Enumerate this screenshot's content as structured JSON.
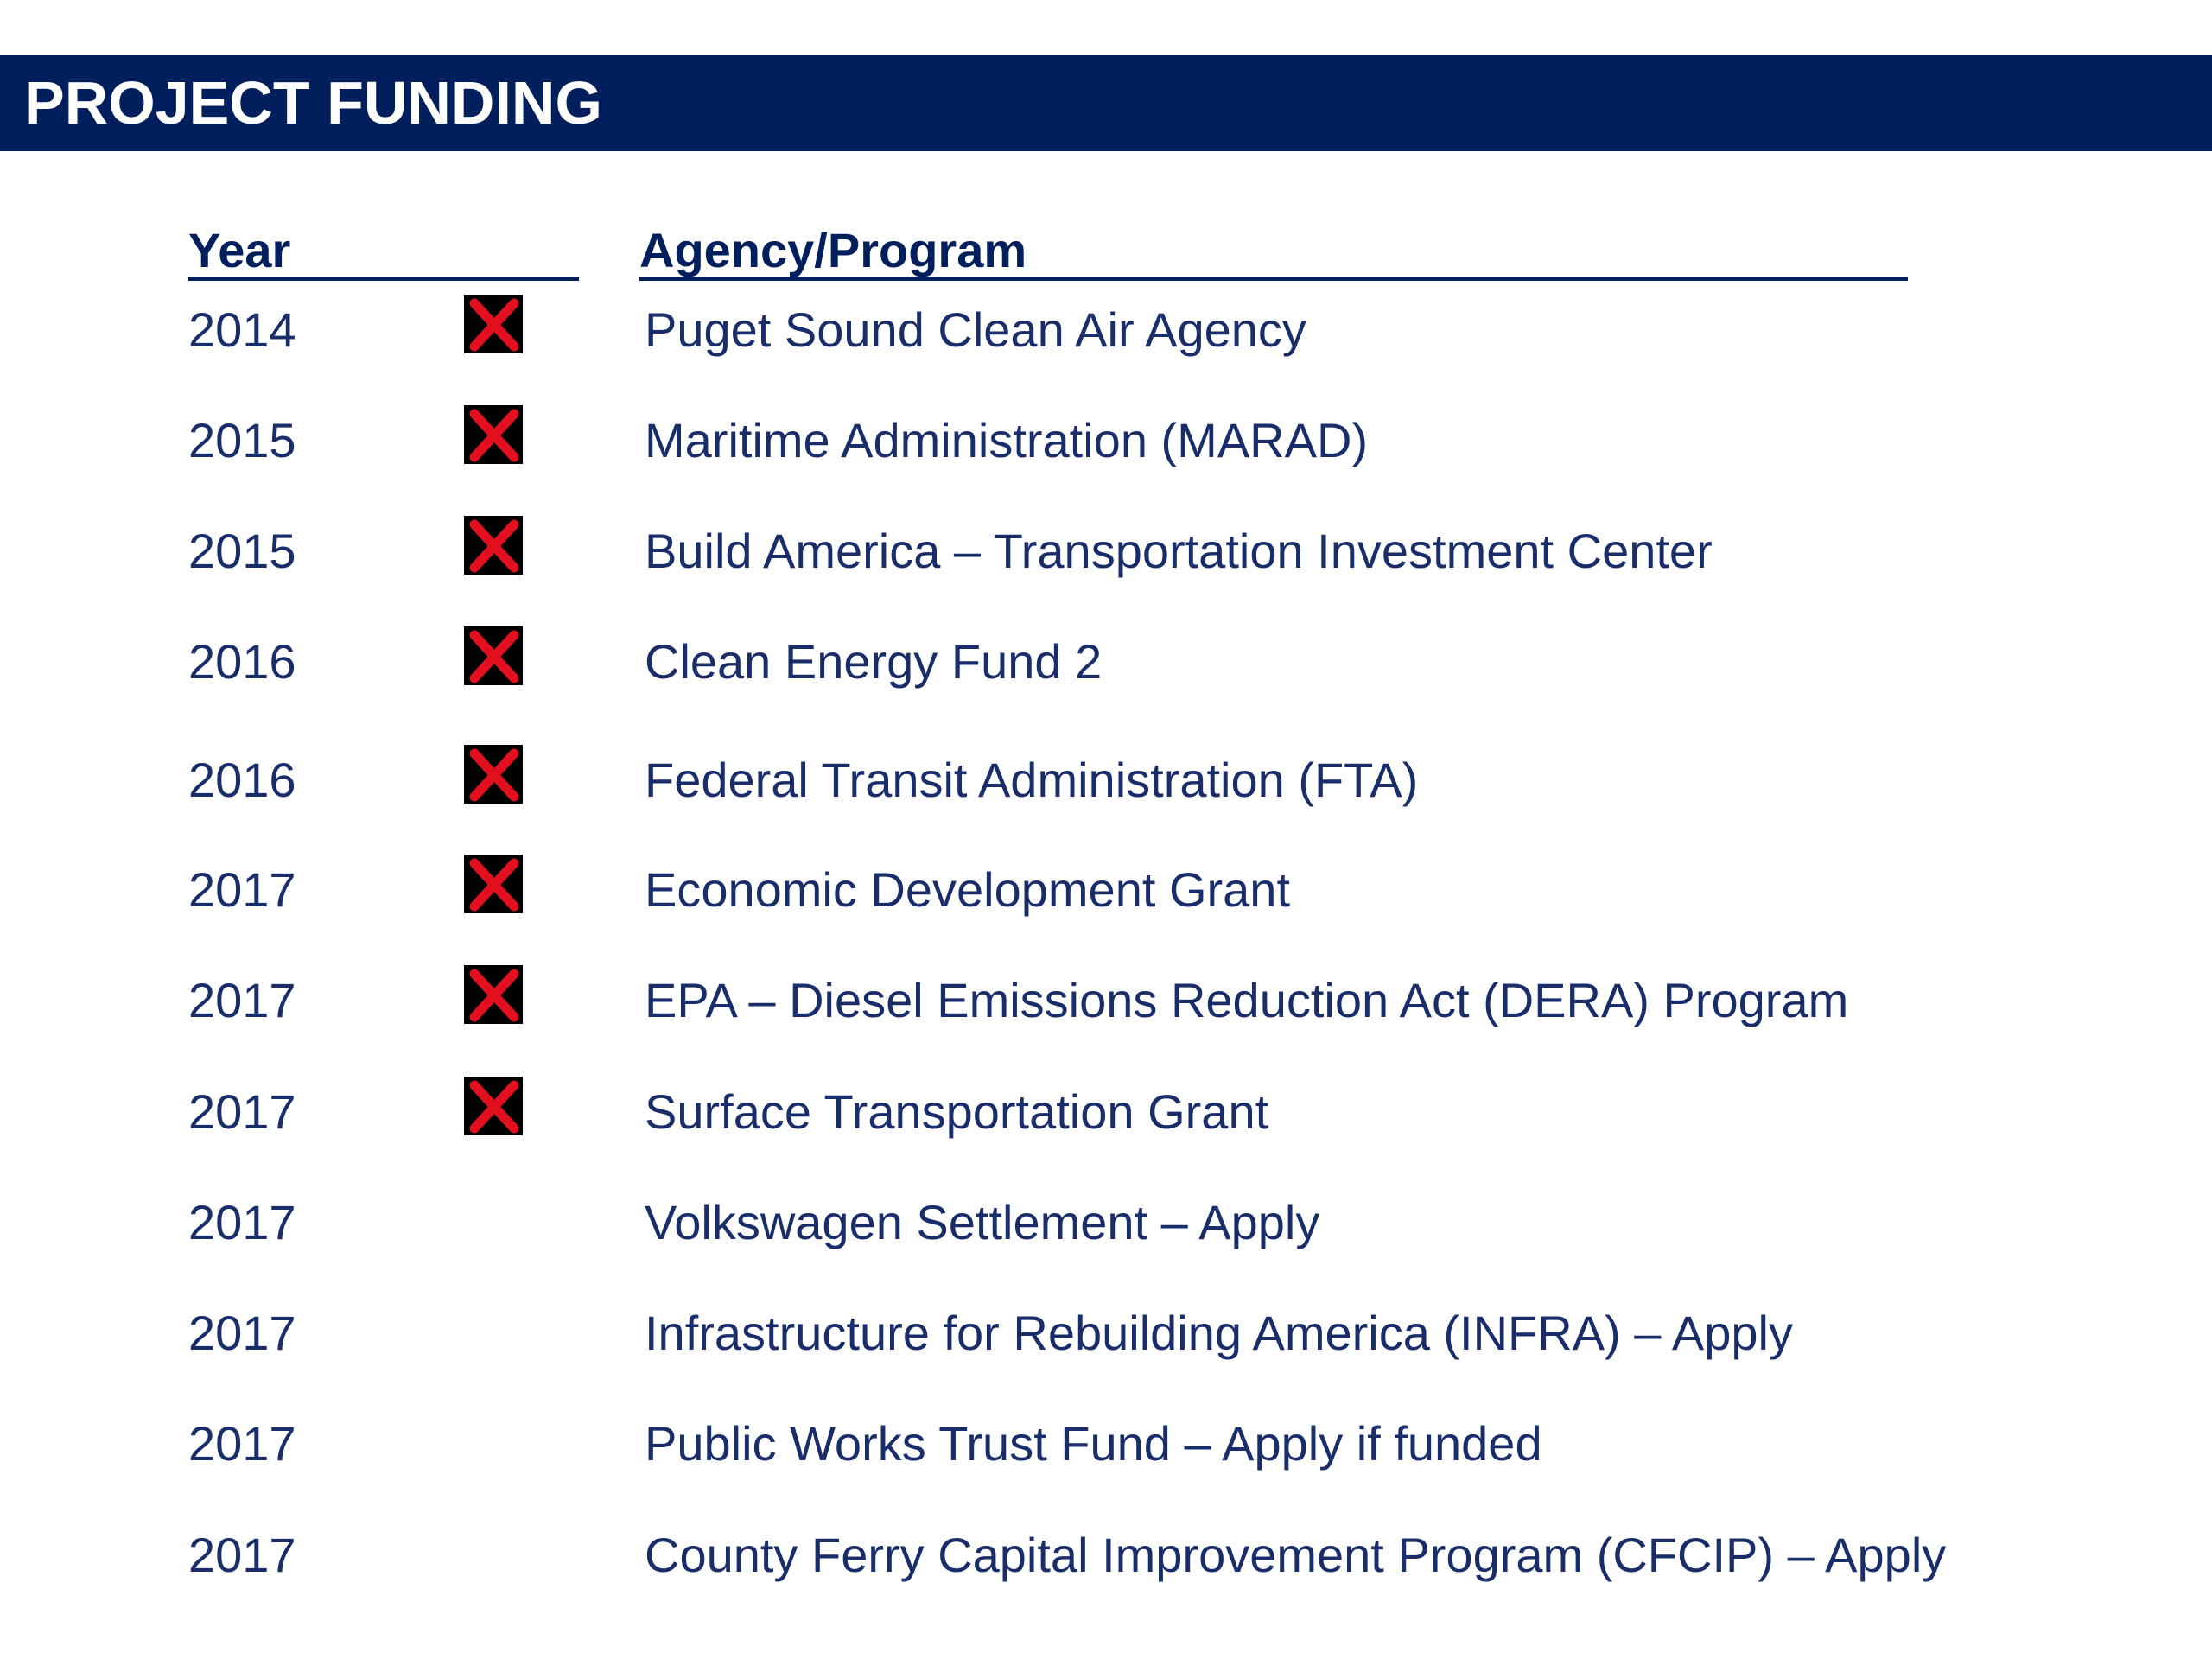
{
  "header": {
    "title": "PROJECT FUNDING"
  },
  "table": {
    "columns": [
      "Year",
      "Agency/Program"
    ],
    "rows": [
      {
        "year": "2014",
        "agency": "Puget Sound Clean Air Agency",
        "marked": true
      },
      {
        "year": "2015",
        "agency": "Maritime Administration (MARAD)",
        "marked": true
      },
      {
        "year": "2015",
        "agency": "Build America – Transportation Investment Center",
        "marked": true
      },
      {
        "year": "2016",
        "agency": "Clean Energy Fund 2",
        "marked": true
      },
      {
        "year": "2016",
        "agency": "Federal Transit Administration (FTA)",
        "marked": true
      },
      {
        "year": "2017",
        "agency": "Economic Development Grant",
        "marked": true
      },
      {
        "year": "2017",
        "agency": "EPA – Diesel Emissions Reduction Act (DERA) Program",
        "marked": true
      },
      {
        "year": "2017",
        "agency": "Surface Transportation Grant",
        "marked": true
      },
      {
        "year": "2017",
        "agency": "Volkswagen Settlement – Apply",
        "marked": false
      },
      {
        "year": "2017",
        "agency": "Infrastructure for Rebuilding America (INFRA) – Apply",
        "marked": false
      },
      {
        "year": "2017",
        "agency": "Public Works Trust Fund – Apply if funded",
        "marked": false
      },
      {
        "year": "2017",
        "agency": "County Ferry Capital Improvement Program (CFCIP) – Apply",
        "marked": false
      }
    ]
  },
  "icons": {
    "marked": "x-mark-icon"
  },
  "colors": {
    "title_bar": "#001f5c",
    "text": "#1a2d6b",
    "x_mark": "#e0101e"
  }
}
